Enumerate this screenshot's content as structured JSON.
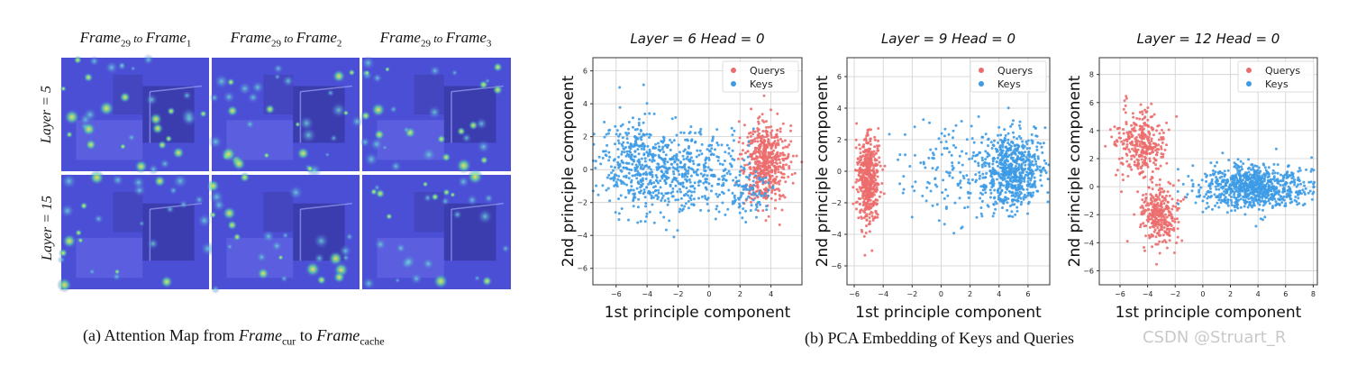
{
  "part_a": {
    "column_titles": [
      {
        "base": "Frame",
        "base_sub": "29",
        "mid": " to ",
        "target": "Frame",
        "target_sub": "1"
      },
      {
        "base": "Frame",
        "base_sub": "29",
        "mid": " to ",
        "target": "Frame",
        "target_sub": "2"
      },
      {
        "base": "Frame",
        "base_sub": "29",
        "mid": " to ",
        "target": "Frame",
        "target_sub": "3"
      }
    ],
    "row_labels": [
      "Layer = 5",
      "Layer = 15"
    ],
    "caption": {
      "prefix": "(a) Attention Map from ",
      "frame1": "Frame",
      "sub1": "cur",
      "mid": " to ",
      "frame2": "Frame",
      "sub2": "cache"
    }
  },
  "part_b": {
    "caption": "(b) PCA Embedding of Keys and Queries"
  },
  "watermark": "CSDN @Struart_R",
  "colors": {
    "querys": "#ec6d6d",
    "keys": "#3d9be6",
    "heat_bg": "#4b4fd6"
  },
  "chart_data": [
    {
      "type": "scatter",
      "title": "Layer = 6  Head = 0",
      "xlabel": "1st principle component",
      "ylabel": "2nd principle component",
      "xlim": [
        -7.5,
        6
      ],
      "ylim": [
        -7,
        6.8
      ],
      "xticks": [
        -6,
        -4,
        -2,
        0,
        2,
        4
      ],
      "yticks": [
        -6,
        -4,
        -2,
        0,
        2,
        4,
        6
      ],
      "xtick_labels": [
        "−6",
        "−4",
        "−2",
        "0",
        "2",
        "4"
      ],
      "ytick_labels": [
        "−6",
        "−4",
        "−2",
        "0",
        "2",
        "4",
        "6"
      ],
      "grid": true,
      "legend": "top-right",
      "series": [
        {
          "name": "Querys",
          "clusters": [
            {
              "cx": 3.7,
              "cy": 0.4,
              "sx": 0.75,
              "sy": 1.4,
              "n": 520
            }
          ]
        },
        {
          "name": "Keys",
          "clusters": [
            {
              "cx": -4.5,
              "cy": 0.2,
              "sx": 1.4,
              "sy": 1.3,
              "n": 430
            },
            {
              "cx": -1.2,
              "cy": 0.0,
              "sx": 1.6,
              "sy": 1.4,
              "n": 330
            },
            {
              "cx": 2.5,
              "cy": -1.2,
              "sx": 0.8,
              "sy": 1.0,
              "n": 90
            }
          ]
        }
      ]
    },
    {
      "type": "scatter",
      "title": "Layer = 9  Head = 0",
      "xlabel": "1st principle component",
      "ylabel": "2nd principle component",
      "xlim": [
        -6.5,
        7.5
      ],
      "ylim": [
        -7.2,
        7.2
      ],
      "xticks": [
        -6,
        -4,
        -2,
        0,
        2,
        4,
        6
      ],
      "yticks": [
        -6,
        -4,
        -2,
        0,
        2,
        4,
        6
      ],
      "xtick_labels": [
        "−6",
        "−4",
        "−2",
        "0",
        "2",
        "4",
        "6"
      ],
      "ytick_labels": [
        "−6",
        "−4",
        "−2",
        "0",
        "2",
        "4",
        "6"
      ],
      "grid": true,
      "legend": "top-right",
      "series": [
        {
          "name": "Querys",
          "clusters": [
            {
              "cx": -5.0,
              "cy": -0.5,
              "sx": 0.4,
              "sy": 1.35,
              "n": 480
            }
          ]
        },
        {
          "name": "Keys",
          "clusters": [
            {
              "cx": 5.0,
              "cy": 0.0,
              "sx": 1.0,
              "sy": 1.2,
              "n": 600
            },
            {
              "cx": 1.5,
              "cy": 0.0,
              "sx": 2.2,
              "sy": 1.5,
              "n": 200
            }
          ]
        }
      ]
    },
    {
      "type": "scatter",
      "title": "Layer = 12  Head = 0",
      "xlabel": "1st principle component",
      "ylabel": "2nd principle component",
      "xlim": [
        -7.5,
        8.3
      ],
      "ylim": [
        -7,
        9.2
      ],
      "xticks": [
        -6,
        -4,
        -2,
        0,
        2,
        4,
        6,
        8
      ],
      "yticks": [
        -6,
        -4,
        -2,
        0,
        2,
        4,
        6,
        8
      ],
      "xtick_labels": [
        "−6",
        "−4",
        "−2",
        "0",
        "2",
        "4",
        "6",
        "8"
      ],
      "ytick_labels": [
        "−6",
        "−4",
        "−2",
        "0",
        "2",
        "4",
        "6",
        "8"
      ],
      "grid": true,
      "legend": "top-right",
      "series": [
        {
          "name": "Querys",
          "clusters": [
            {
              "cx": -4.5,
              "cy": 3.0,
              "sx": 0.9,
              "sy": 1.2,
              "n": 330
            },
            {
              "cx": -3.2,
              "cy": -2.0,
              "sx": 0.7,
              "sy": 1.0,
              "n": 300
            }
          ]
        },
        {
          "name": "Keys",
          "clusters": [
            {
              "cx": 3.8,
              "cy": 0.0,
              "sx": 1.9,
              "sy": 0.8,
              "n": 850
            }
          ]
        }
      ]
    }
  ]
}
